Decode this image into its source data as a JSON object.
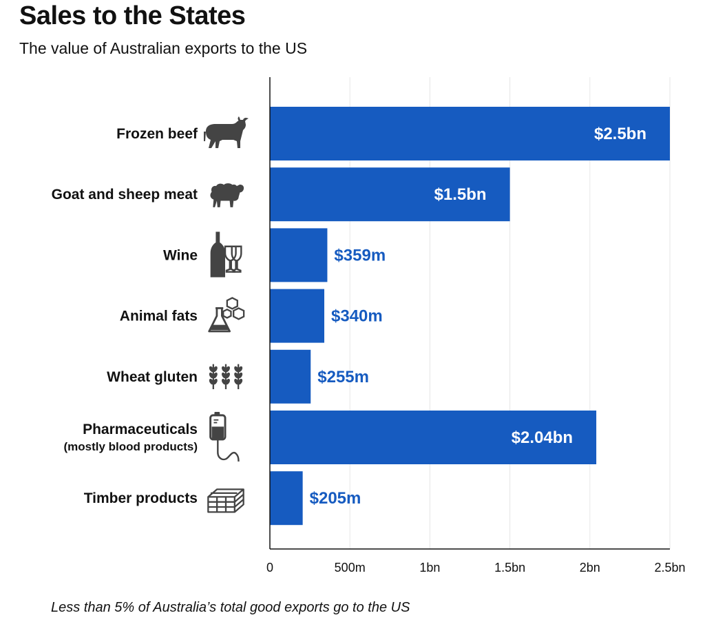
{
  "title": "Sales to the States",
  "subtitle": "The value of Australian exports to the US",
  "footnote": "Less than 5% of Australia’s total good exports go to the US",
  "colors": {
    "bar": "#165bc0",
    "grid": "#e6e6e6",
    "axis": "#111111",
    "icon": "#444444"
  },
  "chart_data": {
    "type": "bar",
    "orientation": "horizontal",
    "title": "Sales to the States",
    "subtitle": "The value of Australian exports to the US",
    "xlim": [
      0,
      2.5
    ],
    "x_unit": "bn AUD",
    "x_ticks": [
      0,
      0.5,
      1,
      1.5,
      2,
      2.5
    ],
    "x_tick_labels": [
      "0",
      "500m",
      "1bn",
      "1.5bn",
      "2bn",
      "2.5bn"
    ],
    "grid": "vertical",
    "categories": [
      {
        "label": "Frozen beef",
        "sublabel": "",
        "icon": "bull-icon",
        "value": 2.5,
        "value_label": "$2.5bn"
      },
      {
        "label": "Goat and sheep meat",
        "sublabel": "",
        "icon": "sheep-icon",
        "value": 1.5,
        "value_label": "$1.5bn"
      },
      {
        "label": "Wine",
        "sublabel": "",
        "icon": "wine-icon",
        "value": 0.359,
        "value_label": "$359m"
      },
      {
        "label": "Animal fats",
        "sublabel": "",
        "icon": "flask-icon",
        "value": 0.34,
        "value_label": "$340m"
      },
      {
        "label": "Wheat gluten",
        "sublabel": "",
        "icon": "wheat-icon",
        "value": 0.255,
        "value_label": "$255m"
      },
      {
        "label": "Pharmaceuticals",
        "sublabel": "(mostly blood products)",
        "icon": "iv-bag-icon",
        "value": 2.04,
        "value_label": "$2.04bn"
      },
      {
        "label": "Timber products",
        "sublabel": "",
        "icon": "timber-icon",
        "value": 0.205,
        "value_label": "$205m"
      }
    ]
  }
}
